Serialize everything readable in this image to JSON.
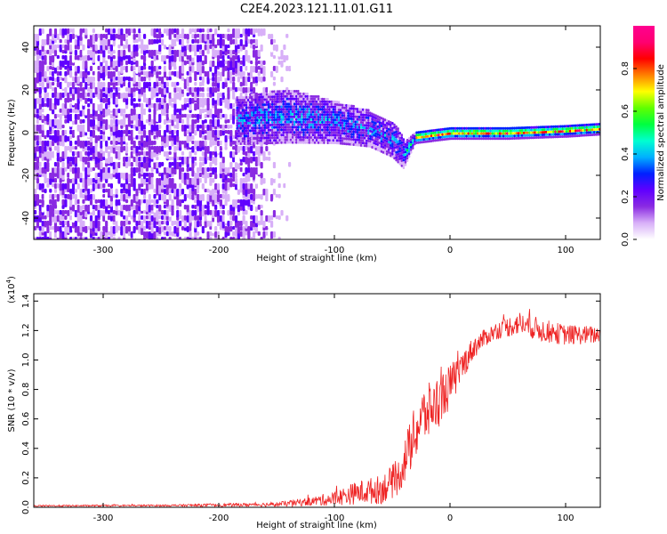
{
  "title": "C2E4.2023.121.11.01.G11",
  "chart_data": [
    {
      "type": "heatmap",
      "name": "spectrogram",
      "xlabel": "Height of straight line (km)",
      "ylabel": "Frequency (Hz)",
      "xlim": [
        -360,
        130
      ],
      "ylim": [
        -50,
        50
      ],
      "xticks": [
        -300,
        -200,
        -100,
        0,
        100
      ],
      "yticks": [
        -40,
        -20,
        0,
        20,
        40
      ],
      "colorbar": {
        "label": "Normalized spectral amplitude",
        "range": [
          0,
          1
        ],
        "ticks": [
          "0.0",
          "0.2",
          "0.4",
          "0.6",
          "0.8"
        ],
        "tick_values": [
          0,
          0.2,
          0.4,
          0.6,
          0.8
        ],
        "colors": [
          "#ffffff",
          "#d8b0f8",
          "#8a2be2",
          "#6000ff",
          "#0020ff",
          "#00b0ff",
          "#00ffd0",
          "#00ff40",
          "#60ff00",
          "#ffff00",
          "#ff8000",
          "#ff0000",
          "#ff0070",
          "#ff0090"
        ]
      },
      "features": {
        "noise_region_x": [
          -360,
          -175
        ],
        "signal_band": {
          "x": [
            -180,
            -140,
            -100,
            -70,
            -50,
            -40,
            -30,
            0,
            50,
            100,
            130
          ],
          "center_freq": [
            6,
            8,
            5,
            2,
            -3,
            -10,
            -2,
            0,
            0,
            1,
            2
          ],
          "half_width": [
            8,
            9,
            7,
            6,
            6,
            5,
            2,
            2,
            2,
            2,
            2
          ]
        }
      }
    },
    {
      "type": "line",
      "name": "snr",
      "xlabel": "Height of straight line (km)",
      "ylabel": "SNR (10 * v/v)",
      "yscale_label": "(x10",
      "yscale_exp": "4",
      "yscale_close": ")",
      "xlim": [
        -360,
        130
      ],
      "ylim": [
        0,
        1.45
      ],
      "xticks": [
        -300,
        -200,
        -100,
        0,
        100
      ],
      "yticks": [
        "0.0",
        "0.2",
        "0.4",
        "0.6",
        "0.8",
        "1.0",
        "1.2",
        "1.4"
      ],
      "ytick_values": [
        0,
        0.2,
        0.4,
        0.6,
        0.8,
        1.0,
        1.2,
        1.4
      ],
      "color": "#ee2222",
      "series": {
        "x": [
          -360,
          -250,
          -200,
          -150,
          -120,
          -100,
          -80,
          -60,
          -45,
          -35,
          -25,
          -10,
          0,
          10,
          20,
          30,
          40,
          60,
          80,
          100,
          130
        ],
        "mean": [
          0.01,
          0.012,
          0.015,
          0.02,
          0.04,
          0.06,
          0.1,
          0.12,
          0.2,
          0.4,
          0.6,
          0.72,
          0.82,
          0.95,
          1.08,
          1.15,
          1.2,
          1.25,
          1.2,
          1.17,
          1.17
        ],
        "noise": [
          0.005,
          0.006,
          0.01,
          0.015,
          0.03,
          0.05,
          0.08,
          0.1,
          0.12,
          0.18,
          0.2,
          0.18,
          0.15,
          0.1,
          0.08,
          0.06,
          0.06,
          0.08,
          0.08,
          0.07,
          0.06
        ]
      }
    }
  ]
}
